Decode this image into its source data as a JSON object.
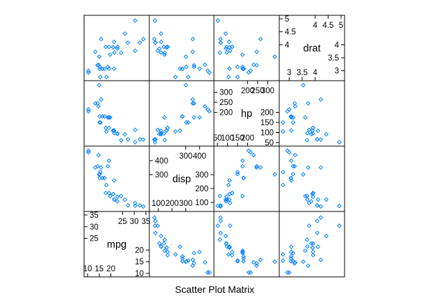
{
  "chart_data": {
    "type": "scatter",
    "subtype": "scatter plot matrix",
    "title": "",
    "xlabel": "Scatter Plot Matrix",
    "ylabel": "",
    "grid": false,
    "marker": "diamond",
    "point_color": "#0080ff",
    "variables": [
      {
        "name": "mpg",
        "range": [
          10,
          35
        ],
        "ticks_low": [
          10,
          15,
          20
        ],
        "ticks_high": [
          25,
          30,
          35
        ]
      },
      {
        "name": "disp",
        "range": [
          60,
          480
        ],
        "ticks_low": [
          100,
          200,
          300
        ],
        "ticks_high": [
          300,
          400
        ]
      },
      {
        "name": "hp",
        "range": [
          50,
          340
        ],
        "ticks_low": [
          50,
          100,
          150,
          200
        ],
        "ticks_high": [
          200,
          250,
          300
        ]
      },
      {
        "name": "drat",
        "range": [
          2.75,
          5.0
        ],
        "ticks_low": [
          3.0,
          3.5,
          4.0
        ],
        "ticks_high": [
          4.0,
          4.5,
          5.0
        ]
      }
    ],
    "observations": [
      {
        "mpg": 21.0,
        "disp": 160,
        "hp": 110,
        "drat": 3.9
      },
      {
        "mpg": 21.0,
        "disp": 160,
        "hp": 110,
        "drat": 3.9
      },
      {
        "mpg": 22.8,
        "disp": 108,
        "hp": 93,
        "drat": 3.85
      },
      {
        "mpg": 21.4,
        "disp": 258,
        "hp": 110,
        "drat": 3.08
      },
      {
        "mpg": 18.7,
        "disp": 360,
        "hp": 175,
        "drat": 3.15
      },
      {
        "mpg": 18.1,
        "disp": 225,
        "hp": 105,
        "drat": 2.76
      },
      {
        "mpg": 14.3,
        "disp": 360,
        "hp": 245,
        "drat": 3.21
      },
      {
        "mpg": 24.4,
        "disp": 146.7,
        "hp": 62,
        "drat": 3.69
      },
      {
        "mpg": 22.8,
        "disp": 140.8,
        "hp": 95,
        "drat": 3.92
      },
      {
        "mpg": 19.2,
        "disp": 167.6,
        "hp": 123,
        "drat": 3.92
      },
      {
        "mpg": 17.8,
        "disp": 167.6,
        "hp": 123,
        "drat": 3.92
      },
      {
        "mpg": 16.4,
        "disp": 275.8,
        "hp": 180,
        "drat": 3.07
      },
      {
        "mpg": 17.3,
        "disp": 275.8,
        "hp": 180,
        "drat": 3.07
      },
      {
        "mpg": 15.2,
        "disp": 275.8,
        "hp": 180,
        "drat": 3.07
      },
      {
        "mpg": 10.4,
        "disp": 472,
        "hp": 205,
        "drat": 2.93
      },
      {
        "mpg": 10.4,
        "disp": 460,
        "hp": 215,
        "drat": 3.0
      },
      {
        "mpg": 14.7,
        "disp": 440,
        "hp": 230,
        "drat": 3.23
      },
      {
        "mpg": 32.4,
        "disp": 78.7,
        "hp": 66,
        "drat": 4.08
      },
      {
        "mpg": 30.4,
        "disp": 75.7,
        "hp": 52,
        "drat": 4.93
      },
      {
        "mpg": 33.9,
        "disp": 71.1,
        "hp": 65,
        "drat": 4.22
      },
      {
        "mpg": 21.5,
        "disp": 120.1,
        "hp": 97,
        "drat": 3.7
      },
      {
        "mpg": 15.5,
        "disp": 318,
        "hp": 150,
        "drat": 2.76
      },
      {
        "mpg": 15.2,
        "disp": 304,
        "hp": 150,
        "drat": 3.15
      },
      {
        "mpg": 13.3,
        "disp": 350,
        "hp": 245,
        "drat": 3.73
      },
      {
        "mpg": 19.2,
        "disp": 400,
        "hp": 175,
        "drat": 3.08
      },
      {
        "mpg": 27.3,
        "disp": 79,
        "hp": 66,
        "drat": 4.08
      },
      {
        "mpg": 26.0,
        "disp": 120.3,
        "hp": 91,
        "drat": 4.43
      },
      {
        "mpg": 30.4,
        "disp": 95.1,
        "hp": 113,
        "drat": 3.77
      },
      {
        "mpg": 15.8,
        "disp": 351,
        "hp": 264,
        "drat": 4.22
      },
      {
        "mpg": 19.7,
        "disp": 145,
        "hp": 175,
        "drat": 3.62
      },
      {
        "mpg": 15.0,
        "disp": 301,
        "hp": 335,
        "drat": 3.54
      },
      {
        "mpg": 21.4,
        "disp": 121,
        "hp": 109,
        "drat": 4.11
      }
    ]
  }
}
